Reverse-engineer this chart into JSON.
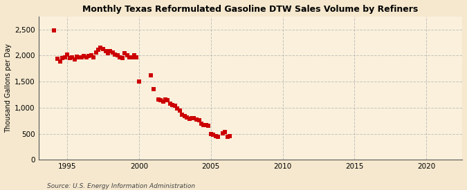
{
  "title": "Monthly Texas Reformulated Gasoline DTW Sales Volume by Refiners",
  "ylabel": "Thousand Gallons per Day",
  "source": "Source: U.S. Energy Information Administration",
  "background_color": "#f5e8ce",
  "plot_background_color": "#faf0dc",
  "marker_color": "#cc0000",
  "marker": "s",
  "marker_size": 4,
  "xlim": [
    1993.0,
    2022.5
  ],
  "ylim": [
    0,
    2750
  ],
  "yticks": [
    0,
    500,
    1000,
    1500,
    2000,
    2500
  ],
  "ytick_labels": [
    "0",
    "500",
    "1,000",
    "1,500",
    "2,000",
    "2,500"
  ],
  "xticks": [
    1995,
    2000,
    2005,
    2010,
    2015,
    2020
  ],
  "data_x": [
    1994.08,
    1994.33,
    1994.5,
    1994.67,
    1994.83,
    1995.0,
    1995.17,
    1995.33,
    1995.5,
    1995.67,
    1995.83,
    1996.0,
    1996.17,
    1996.33,
    1996.5,
    1996.67,
    1996.83,
    1997.0,
    1997.17,
    1997.33,
    1997.5,
    1997.67,
    1997.83,
    1998.0,
    1998.17,
    1998.33,
    1998.5,
    1998.67,
    1998.83,
    1999.0,
    1999.17,
    1999.33,
    1999.5,
    1999.67,
    1999.83,
    2000.0,
    2000.83,
    2001.0,
    2001.33,
    2001.5,
    2001.67,
    2001.83,
    2002.0,
    2002.17,
    2002.33,
    2002.5,
    2002.67,
    2002.83,
    2003.0,
    2003.17,
    2003.33,
    2003.5,
    2003.67,
    2003.83,
    2004.0,
    2004.17,
    2004.33,
    2004.5,
    2004.67,
    2004.83,
    2005.0,
    2005.17,
    2005.33,
    2005.5,
    2005.83,
    2006.0,
    2006.17,
    2006.33
  ],
  "data_y": [
    2480,
    1940,
    1880,
    1950,
    1960,
    2020,
    1950,
    1970,
    1930,
    1980,
    1960,
    1960,
    1990,
    1970,
    1990,
    2000,
    1960,
    2060,
    2110,
    2150,
    2120,
    2080,
    2050,
    2080,
    2060,
    2020,
    2000,
    1960,
    1950,
    2050,
    2010,
    1960,
    1970,
    2010,
    1960,
    1500,
    1620,
    1350,
    1160,
    1140,
    1120,
    1160,
    1140,
    1080,
    1050,
    1040,
    990,
    950,
    870,
    840,
    810,
    790,
    800,
    800,
    775,
    760,
    690,
    660,
    660,
    650,
    500,
    480,
    450,
    440,
    510,
    530,
    445,
    460
  ]
}
